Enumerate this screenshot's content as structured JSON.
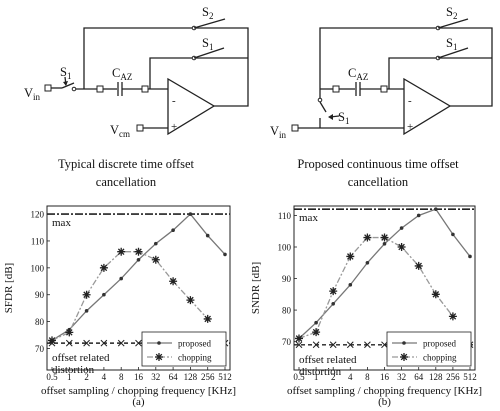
{
  "circuits": [
    {
      "labels": {
        "vin": "V",
        "vin_sub": "in",
        "s1": "S",
        "s1_sub": "1",
        "caz": "C",
        "caz_sub": "AZ",
        "s1_fb": "S",
        "s1_fb_sub": "1",
        "s2": "S",
        "s2_sub": "2",
        "vcm": "V",
        "vcm_sub": "cm",
        "minus": "-",
        "plus": "+"
      },
      "caption": [
        "Typical discrete time offset",
        "cancellation"
      ]
    },
    {
      "labels": {
        "vin": "V",
        "vin_sub": "in",
        "s1": "S",
        "s1_sub": "1",
        "caz": "C",
        "caz_sub": "AZ",
        "s1_fb": "S",
        "s1_fb_sub": "1",
        "s2": "S",
        "s2_sub": "2",
        "minus": "-",
        "plus": "+"
      },
      "caption": [
        "Proposed continuous time offset",
        "cancellation"
      ]
    }
  ],
  "chart_data": [
    {
      "type": "line",
      "x_ticks": [
        "0.5",
        "1",
        "2",
        "4",
        "8",
        "16",
        "32",
        "64",
        "128",
        "256",
        "512"
      ],
      "xlabel": "offset sampling / chopping frequency [KHz]",
      "ylabel": "SFDR [dB]",
      "yticks": [
        70,
        80,
        90,
        100,
        110,
        120
      ],
      "ylim": [
        62,
        123
      ],
      "max_line": {
        "label": "max",
        "value": 120
      },
      "offset_line": {
        "label": [
          "offset related",
          "distortion"
        ],
        "value": 72
      },
      "series": [
        {
          "name": "proposed",
          "marker": "dot",
          "values": [
            73,
            77,
            84,
            90,
            96,
            103,
            109,
            114,
            120,
            112,
            105
          ]
        },
        {
          "name": "chopping",
          "marker": "star",
          "values": [
            73,
            76,
            90,
            100,
            106,
            106,
            103,
            95,
            88,
            81
          ]
        }
      ],
      "legend": "bottom-right",
      "panel_label": "(a)"
    },
    {
      "type": "line",
      "x_ticks": [
        "0.5",
        "1",
        "2",
        "4",
        "8",
        "16",
        "32",
        "64",
        "128",
        "256",
        "512"
      ],
      "xlabel": "offset sampling / chopping frequency [KHz]",
      "ylabel": "SNDR [dB]",
      "yticks": [
        70,
        80,
        90,
        100,
        110
      ],
      "ylim": [
        61,
        113
      ],
      "max_line": {
        "label": "max",
        "value": 112
      },
      "offset_line": {
        "label": [
          "offset related",
          "distortion"
        ],
        "value": 69
      },
      "series": [
        {
          "name": "proposed",
          "marker": "dot",
          "values": [
            71,
            76,
            82,
            88,
            95,
            101,
            106,
            110,
            112,
            104,
            97
          ]
        },
        {
          "name": "chopping",
          "marker": "star",
          "values": [
            71,
            73,
            86,
            97,
            103,
            103,
            100,
            94,
            85,
            78
          ]
        }
      ],
      "legend": "bottom-right",
      "panel_label": "(b)"
    }
  ]
}
